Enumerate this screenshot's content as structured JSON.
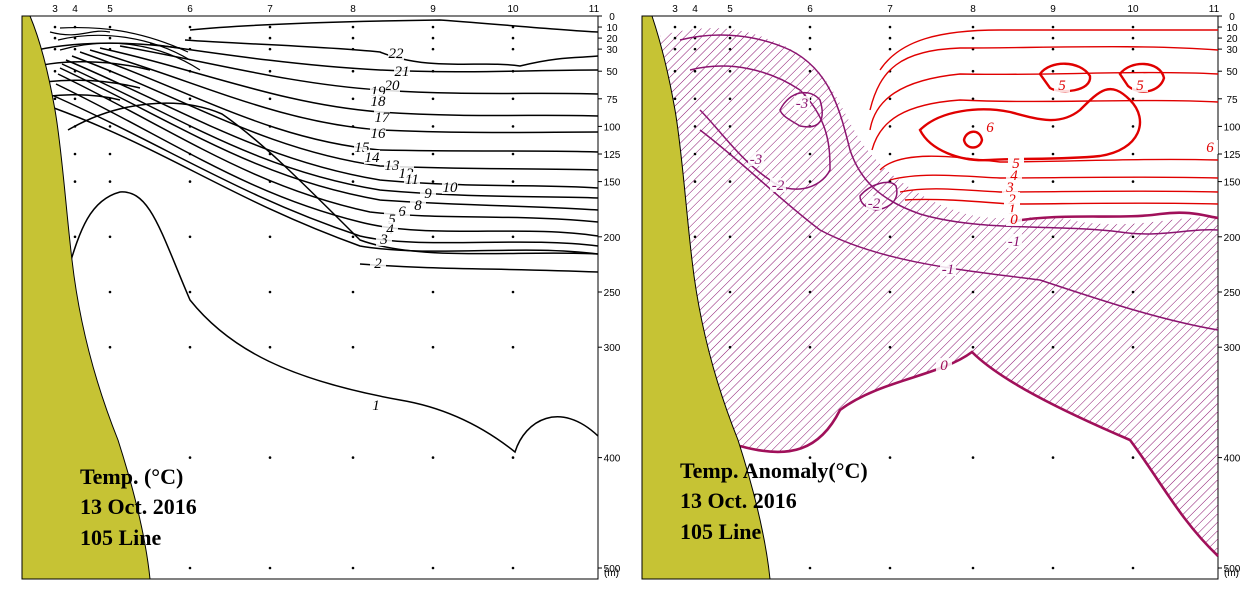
{
  "chart_data": [
    {
      "type": "contour",
      "title": "Temp. (°C)",
      "date": "13 Oct. 2016",
      "line_label": "105 Line",
      "station_ticks": [
        "3",
        "4",
        "5",
        "6",
        "7",
        "8",
        "9",
        "10",
        "11"
      ],
      "depth_ticks": [
        "0",
        "10",
        "20",
        "30",
        "50",
        "75",
        "100",
        "125",
        "150",
        "200",
        "250",
        "300",
        "400",
        "500"
      ],
      "depth_unit": "(m)",
      "ylim": [
        0,
        510
      ],
      "contour_labels": [
        "22",
        "21",
        "20",
        "19",
        "18",
        "17",
        "16",
        "15",
        "14",
        "13",
        "12",
        "11",
        "10",
        "9",
        "8",
        "6",
        "5",
        "4",
        "3",
        "2",
        "1"
      ],
      "colors": {
        "contour": "#000000",
        "coast": "#c6c334"
      }
    },
    {
      "type": "contour",
      "title": "Temp. Anomaly(°C)",
      "date": "13 Oct. 2016",
      "line_label": "105 Line",
      "station_ticks": [
        "3",
        "4",
        "5",
        "6",
        "7",
        "8",
        "9",
        "10",
        "11"
      ],
      "depth_ticks": [
        "0",
        "10",
        "20",
        "30",
        "50",
        "75",
        "100",
        "125",
        "150",
        "200",
        "250",
        "300",
        "400",
        "500"
      ],
      "depth_unit": "(m)",
      "ylim": [
        0,
        510
      ],
      "contour_labels": [
        "6",
        "5",
        "5",
        "5",
        "6",
        "5",
        "4",
        "3",
        "2",
        "1",
        "0",
        "-1",
        "-1",
        "0",
        "-2",
        "-2",
        "-3",
        "-3"
      ],
      "shading": "negative anomaly hatched",
      "colors": {
        "positive": "#e00000",
        "negative": "#8b1470",
        "hatch": "#8b1470",
        "coast": "#c6c334"
      }
    }
  ]
}
